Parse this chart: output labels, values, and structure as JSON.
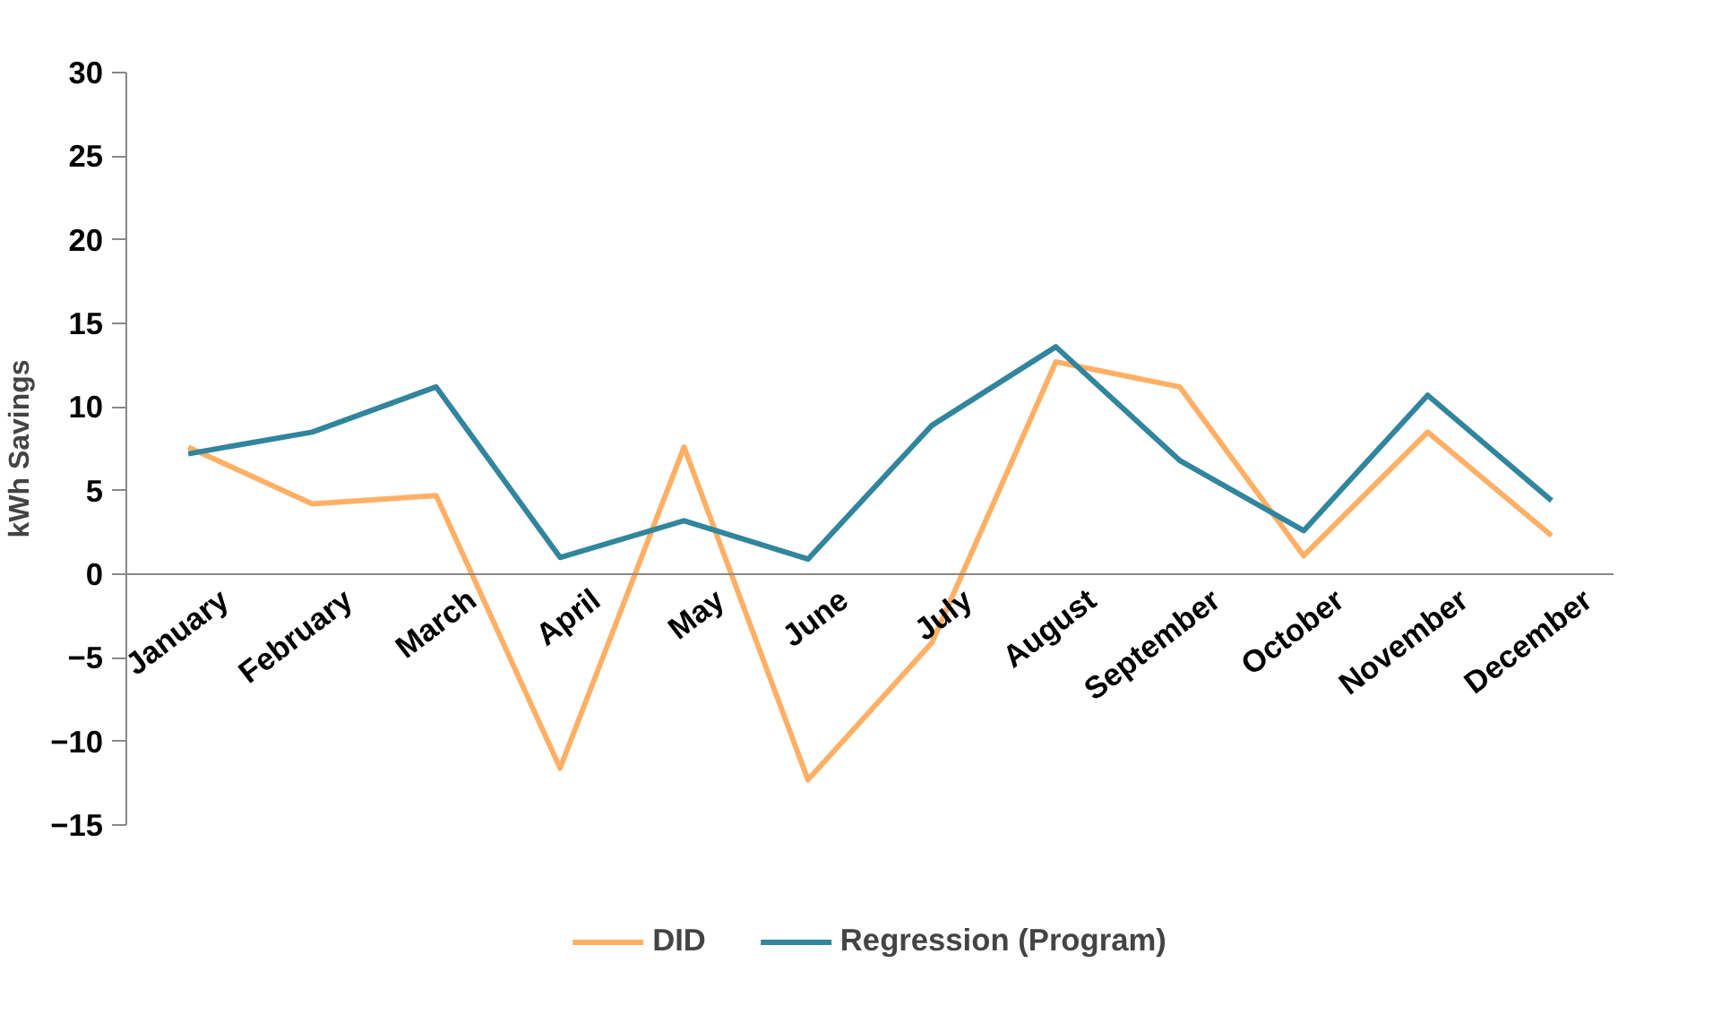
{
  "chart_data": {
    "type": "line",
    "ylabel": "kWh Savings",
    "categories": [
      "January",
      "February",
      "March",
      "April",
      "May",
      "June",
      "July",
      "August",
      "September",
      "October",
      "November",
      "December"
    ],
    "series": [
      {
        "name": "DID",
        "color": "#ffb066",
        "values": [
          7.6,
          4.2,
          4.7,
          -11.6,
          7.6,
          -12.3,
          -4.1,
          12.7,
          11.2,
          1.1,
          8.5,
          2.3
        ]
      },
      {
        "name": "Regression (Program)",
        "color": "#31859c",
        "values": [
          7.2,
          8.5,
          11.2,
          1.0,
          3.2,
          0.9,
          8.9,
          13.6,
          6.8,
          2.6,
          10.7,
          4.4
        ]
      }
    ],
    "ylim": [
      -15,
      30
    ],
    "yticks": [
      -15,
      -10,
      -5,
      0,
      5,
      10,
      15,
      20,
      25,
      30
    ],
    "grid": false,
    "legend": "bottom",
    "marker": "none",
    "line_style": "solid"
  }
}
